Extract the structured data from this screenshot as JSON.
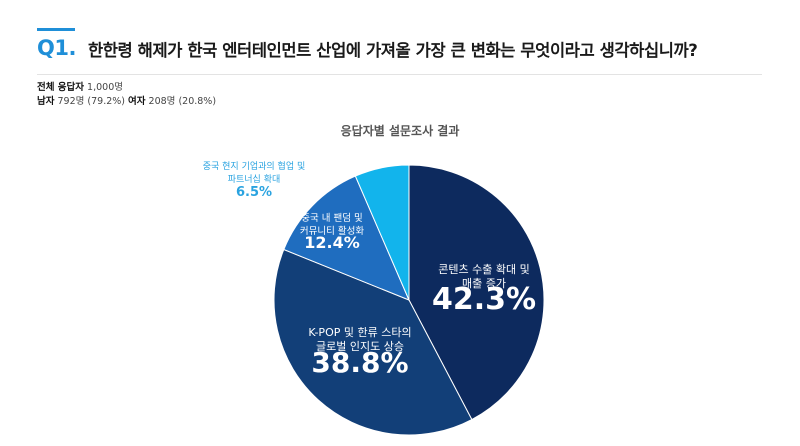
{
  "question": {
    "number": "Q1.",
    "text": "한한령 해제가 한국 엔터테인먼트 산업에 가져올 가장 큰 변화는 무엇이라고 생각하십니까?"
  },
  "respondents": {
    "total_label": "전체 응답자",
    "total_value": "1,000명",
    "male_label": "남자",
    "male_value": "792명 (79.2%)",
    "female_label": "여자",
    "female_value": "208명 (20.8%)"
  },
  "chart_data": {
    "type": "pie",
    "title": "응답자별 설문조사 결과",
    "slices": [
      {
        "label_lines": [
          "콘텐츠 수출 확대 및",
          "매출 증가"
        ],
        "value": 42.3,
        "value_label": "42.3%",
        "color": "#0d2a5e"
      },
      {
        "label_lines": [
          "K-POP 및 한류 스타의",
          "글로벌 인지도 상승"
        ],
        "value": 38.8,
        "value_label": "38.8%",
        "color": "#123f78"
      },
      {
        "label_lines": [
          "중국 내 팬덤 및",
          "커뮤니티 활성화"
        ],
        "value": 12.4,
        "value_label": "12.4%",
        "color": "#1f6dbf"
      },
      {
        "label_lines": [
          "중국 현지 기업과의 협업 및",
          "파트너십 확대"
        ],
        "value": 6.5,
        "value_label": "6.5%",
        "color": "#12b4ec"
      }
    ]
  },
  "colors": {
    "accent": "#1f8fd8",
    "outside_label": "#2aa3e0"
  }
}
